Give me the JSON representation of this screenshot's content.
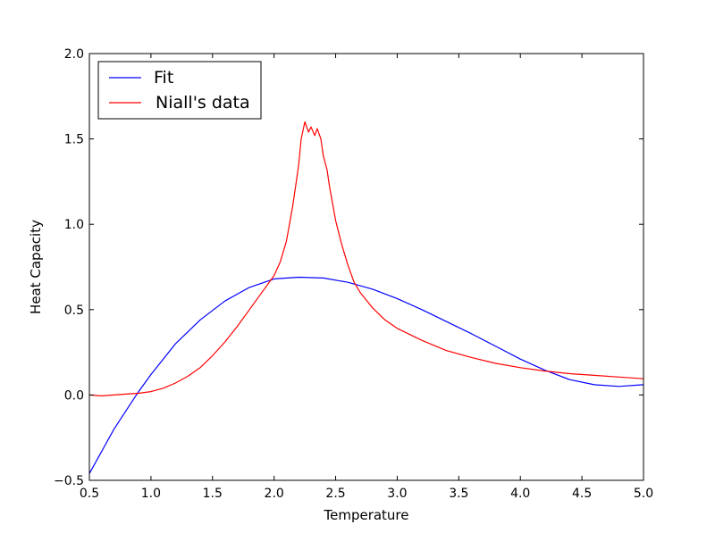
{
  "chart_data": {
    "type": "line",
    "title": "",
    "xlabel": "Temperature",
    "ylabel": "Heat Capacity",
    "xlim": [
      0.5,
      5.0
    ],
    "ylim": [
      -0.5,
      2.0
    ],
    "xticks": [
      "0.5",
      "1.0",
      "1.5",
      "2.0",
      "2.5",
      "3.0",
      "3.5",
      "4.0",
      "4.5",
      "5.0"
    ],
    "yticks": [
      "−0.5",
      "0.0",
      "0.5",
      "1.0",
      "1.5",
      "2.0"
    ],
    "grid": false,
    "legend": "top-left",
    "series": [
      {
        "name": "Fit",
        "color": "#0000ff",
        "x": [
          0.5,
          0.6,
          0.7,
          0.8,
          0.9,
          1.0,
          1.2,
          1.4,
          1.6,
          1.8,
          2.0,
          2.2,
          2.4,
          2.6,
          2.8,
          3.0,
          3.2,
          3.4,
          3.6,
          3.8,
          4.0,
          4.2,
          4.4,
          4.6,
          4.8,
          5.0
        ],
        "y": [
          -0.46,
          -0.33,
          -0.2,
          -0.09,
          0.02,
          0.12,
          0.3,
          0.44,
          0.55,
          0.63,
          0.68,
          0.69,
          0.685,
          0.66,
          0.62,
          0.565,
          0.5,
          0.43,
          0.36,
          0.285,
          0.21,
          0.145,
          0.09,
          0.06,
          0.05,
          0.06
        ]
      },
      {
        "name": "Niall's data",
        "color": "#ff0000",
        "x": [
          0.5,
          0.6,
          0.7,
          0.8,
          0.9,
          1.0,
          1.1,
          1.2,
          1.3,
          1.4,
          1.5,
          1.6,
          1.7,
          1.8,
          1.9,
          2.0,
          2.05,
          2.1,
          2.15,
          2.18,
          2.2,
          2.22,
          2.25,
          2.28,
          2.3,
          2.33,
          2.35,
          2.38,
          2.4,
          2.43,
          2.45,
          2.5,
          2.55,
          2.6,
          2.65,
          2.7,
          2.8,
          2.9,
          3.0,
          3.2,
          3.4,
          3.6,
          3.8,
          4.0,
          4.2,
          4.4,
          4.6,
          4.8,
          5.0
        ],
        "y": [
          0.0,
          -0.005,
          0.0,
          0.005,
          0.01,
          0.02,
          0.04,
          0.07,
          0.11,
          0.16,
          0.23,
          0.31,
          0.4,
          0.5,
          0.6,
          0.7,
          0.78,
          0.9,
          1.1,
          1.25,
          1.35,
          1.5,
          1.6,
          1.54,
          1.57,
          1.52,
          1.56,
          1.5,
          1.4,
          1.32,
          1.22,
          1.02,
          0.88,
          0.76,
          0.66,
          0.6,
          0.51,
          0.44,
          0.39,
          0.32,
          0.26,
          0.22,
          0.185,
          0.16,
          0.14,
          0.125,
          0.115,
          0.105,
          0.095
        ]
      }
    ]
  }
}
